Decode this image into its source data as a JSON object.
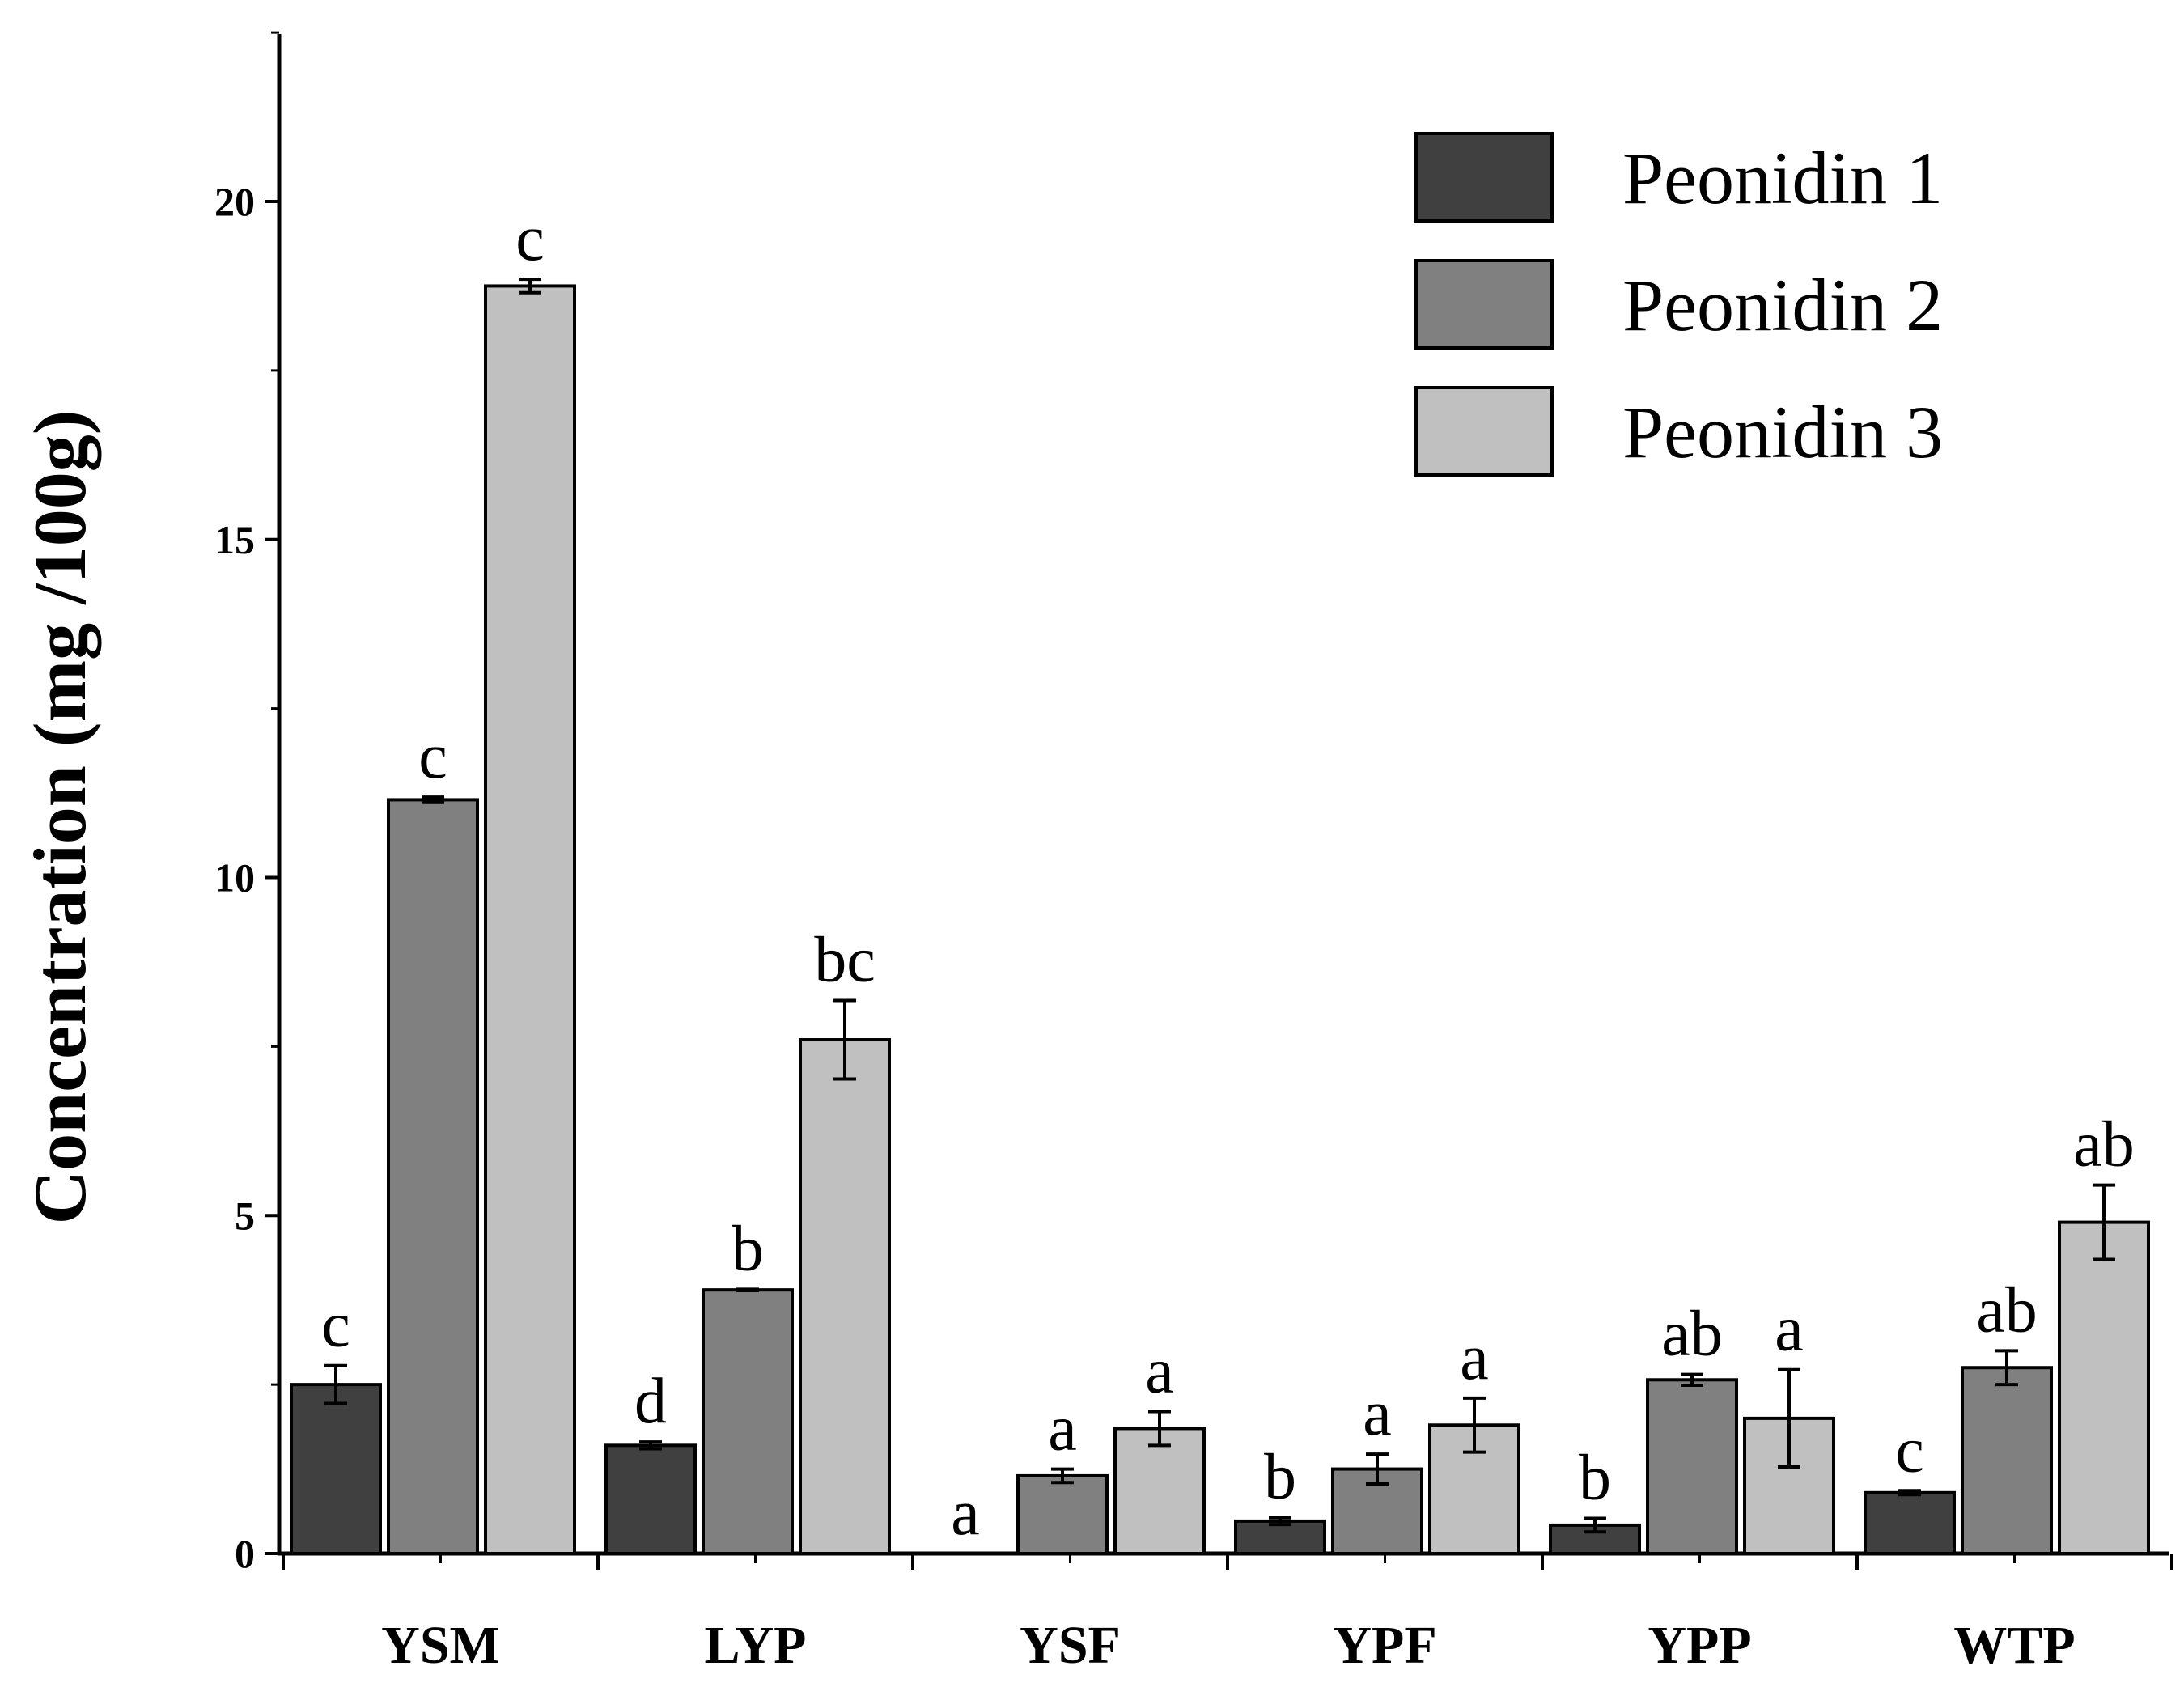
{
  "chart_data": {
    "type": "bar",
    "title": "",
    "xlabel": "",
    "ylabel": "Concentration (mg /100g)",
    "ylim": [
      0,
      22.5
    ],
    "yticks": [
      0,
      5,
      10,
      15,
      20
    ],
    "ytick_labels": [
      "0",
      "5",
      "10",
      "15",
      "20"
    ],
    "grid": false,
    "legend_position": "top-right",
    "categories": [
      "YSM",
      "LYP",
      "YSF",
      "YPF",
      "YPP",
      "WTP"
    ],
    "series": [
      {
        "name": "Peonidin 1",
        "color": "#404040",
        "values": [
          2.5,
          1.6,
          0,
          0.48,
          0.42,
          0.9
        ],
        "errors": [
          0.28,
          0.05,
          0,
          0.05,
          0.1,
          0.03
        ],
        "labels": [
          "c",
          "d",
          "a",
          "b",
          "b",
          "c"
        ]
      },
      {
        "name": "Peonidin 2",
        "color": "#808080",
        "values": [
          11.15,
          3.9,
          1.15,
          1.25,
          2.57,
          2.75
        ],
        "errors": [
          0.04,
          0.01,
          0.1,
          0.22,
          0.08,
          0.25
        ],
        "labels": [
          "c",
          "b",
          "a",
          "a",
          "ab",
          "ab"
        ]
      },
      {
        "name": "Peonidin 3",
        "color": "#c0c0c0",
        "values": [
          18.75,
          7.6,
          1.85,
          1.9,
          2.0,
          4.9
        ],
        "errors": [
          0.1,
          0.58,
          0.25,
          0.4,
          0.72,
          0.55
        ],
        "labels": [
          "c",
          "bc",
          "a",
          "a",
          "a",
          "ab"
        ]
      }
    ]
  }
}
